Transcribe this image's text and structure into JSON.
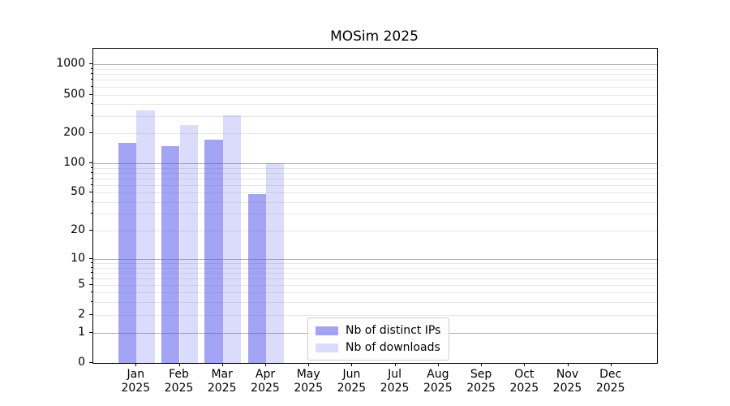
{
  "chart_data": {
    "type": "bar",
    "title": "MOSim 2025",
    "year_label": "2025",
    "categories": [
      "Jan",
      "Feb",
      "Mar",
      "Apr",
      "May",
      "Jun",
      "Jul",
      "Aug",
      "Sep",
      "Oct",
      "Nov",
      "Dec"
    ],
    "series": [
      {
        "name": "Nb of distinct IPs",
        "color": "rgba(90,90,235,0.55)",
        "values": [
          160,
          147,
          170,
          48,
          0,
          0,
          0,
          0,
          0,
          0,
          0,
          0
        ]
      },
      {
        "name": "Nb of downloads",
        "color": "rgba(90,90,235,0.22)",
        "values": [
          345,
          240,
          305,
          100,
          0,
          0,
          0,
          0,
          0,
          0,
          0,
          0
        ]
      }
    ],
    "xlabel": "",
    "ylabel": "",
    "y_scale": "symlog",
    "y_ticks": [
      0,
      1,
      2,
      5,
      10,
      20,
      50,
      100,
      200,
      500,
      1000
    ],
    "y_minor_ticks": [
      2,
      3,
      4,
      5,
      6,
      7,
      8,
      9,
      20,
      30,
      40,
      50,
      60,
      70,
      80,
      90,
      200,
      300,
      400,
      500,
      600,
      700,
      800,
      900
    ],
    "y_major_gridlines": [
      1,
      10,
      100,
      1000
    ],
    "ylim": [
      0,
      1400
    ],
    "grid": true,
    "legend_position": "inside lower center",
    "colors": {
      "major_grid": "#b0b0b0",
      "minor_grid": "#e7e7e7",
      "spine": "#000000",
      "text": "#000000"
    }
  }
}
